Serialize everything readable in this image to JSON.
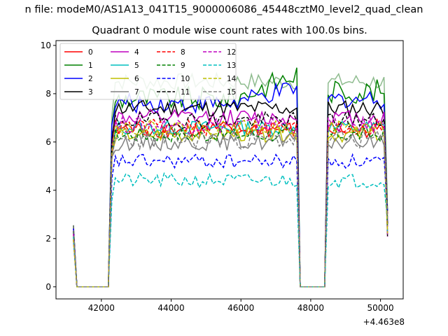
{
  "suptitle": "n file: modeM0/AS1A13_041T15_9000006086_45448cztM0_level2_quad_clean",
  "chart_data": {
    "type": "line",
    "title": "Quadrant 0 module wise count rates with 100.0s bins.",
    "xlabel": "",
    "ylabel": "",
    "x_offset_text": "+4.463e8",
    "xlim": [
      40700,
      50650
    ],
    "ylim": [
      -0.5,
      10.2
    ],
    "xticks": [
      42000,
      44000,
      46000,
      48000,
      50000
    ],
    "xtick_labels": [
      "42000",
      "44000",
      "46000",
      "48000",
      "50000"
    ],
    "yticks": [
      0,
      2,
      4,
      6,
      8,
      10
    ],
    "ytick_labels": [
      "0",
      "2",
      "4",
      "6",
      "8",
      "10"
    ],
    "grid": false,
    "legend_position": "top-left",
    "legend_columns": 4,
    "segments": [
      {
        "start": 41200,
        "end": 41300,
        "rate": "pre"
      },
      {
        "start": 41300,
        "end": 42200,
        "rate": "off"
      },
      {
        "start": 42300,
        "end": 47600,
        "rate": "on"
      },
      {
        "start": 47700,
        "end": 48500,
        "rate": "off"
      },
      {
        "start": 48500,
        "end": 50200,
        "rate": "on"
      }
    ],
    "series": [
      {
        "name": "0",
        "color": "#ff0000",
        "dash": "solid",
        "level": 6.5,
        "amp": 0.35
      },
      {
        "name": "1",
        "color": "#008000",
        "dash": "solid",
        "level": 7.8,
        "amp": 0.5,
        "rise": 1.0
      },
      {
        "name": "2",
        "color": "#0000ff",
        "dash": "solid",
        "level": 7.6,
        "amp": 0.4,
        "rise": 0.6
      },
      {
        "name": "3",
        "color": "#000000",
        "dash": "solid",
        "level": 7.4,
        "amp": 0.35
      },
      {
        "name": "4",
        "color": "#bf00bf",
        "dash": "solid",
        "level": 7.0,
        "amp": 0.35
      },
      {
        "name": "5",
        "color": "#00bfbf",
        "dash": "solid",
        "level": 6.6,
        "amp": 0.3
      },
      {
        "name": "6",
        "color": "#bfbf00",
        "dash": "solid",
        "level": 6.3,
        "amp": 0.3
      },
      {
        "name": "7",
        "color": "#808080",
        "dash": "solid",
        "level": 6.0,
        "amp": 0.35
      },
      {
        "name": "8",
        "color": "#ff0000",
        "dash": "dashed",
        "level": 6.6,
        "amp": 0.35
      },
      {
        "name": "9",
        "color": "#008000",
        "dash": "dashed",
        "level": 6.3,
        "amp": 0.3
      },
      {
        "name": "10",
        "color": "#0000ff",
        "dash": "dashed",
        "level": 5.2,
        "amp": 0.3
      },
      {
        "name": "11",
        "color": "#000000",
        "dash": "dashed",
        "level": 6.9,
        "amp": 0.35
      },
      {
        "name": "12",
        "color": "#bf00bf",
        "dash": "dashed",
        "level": 6.7,
        "amp": 0.35
      },
      {
        "name": "13",
        "color": "#00bfbf",
        "dash": "dashed",
        "level": 4.4,
        "amp": 0.3
      },
      {
        "name": "14",
        "color": "#bfbf00",
        "dash": "dashed",
        "level": 6.6,
        "amp": 0.3
      },
      {
        "name": "15",
        "color": "#808080",
        "dash": "dashed",
        "level": 6.1,
        "amp": 0.4
      }
    ],
    "extra_series": [
      {
        "color": "#8fbc8f",
        "dash": "solid",
        "level": 8.5,
        "amp": 0.35
      }
    ]
  }
}
